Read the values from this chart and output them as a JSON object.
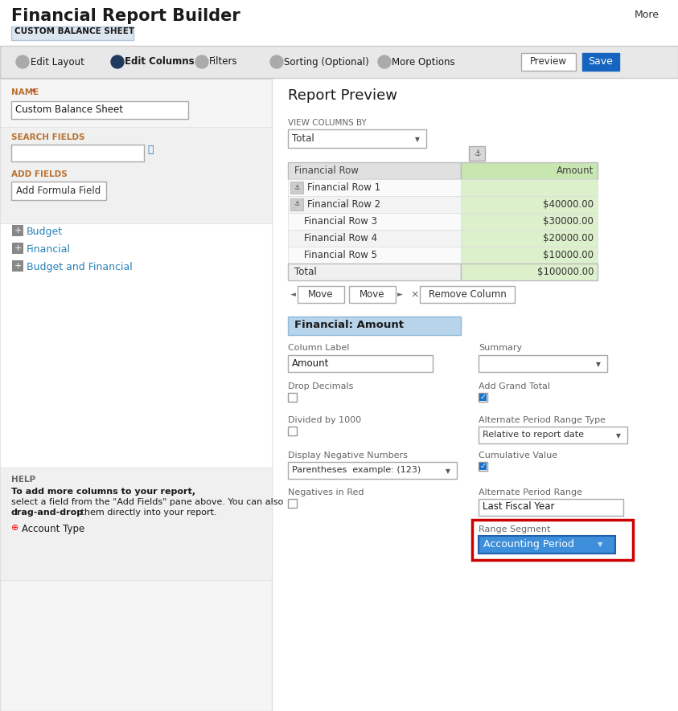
{
  "title": "Financial Report Builder",
  "subtitle": "CUSTOM BALANCE SHEET",
  "more_text": "More",
  "nav_items": [
    "Edit Layout",
    "Edit Columns",
    "Filters",
    "Sorting (Optional)",
    "More Options"
  ],
  "nav_active": 1,
  "preview_btn": "Preview",
  "save_btn": "Save",
  "name_label": "NAME",
  "name_value": "Custom Balance Sheet",
  "search_label": "SEARCH FIELDS",
  "add_fields_label": "ADD FIELDS",
  "add_formula_btn": "Add Formula Field",
  "field_groups": [
    "Budget",
    "Financial",
    "Budget and Financial"
  ],
  "help_label": "HELP",
  "help_text_bold": "To add more columns to your report,",
  "help_text_line2": "select a field from the \"Add Fields\" pane above. You can also",
  "help_text_line3_normal": "from the \"Add Fields\" pane above. You can also",
  "help_text_bold2": "drag-and-drop",
  "help_text_end": "them directly into your report.",
  "help_drag_item": "Account Type",
  "report_preview_title": "Report Preview",
  "view_columns_label": "VIEW COLUMNS BY",
  "view_columns_value": "Total",
  "table_header_left": "Financial Row",
  "table_header_right": "Amount",
  "table_rows": [
    [
      "Financial Row 1",
      ""
    ],
    [
      "Financial Row 2",
      "$40000.00"
    ],
    [
      "Financial Row 3",
      "$30000.00"
    ],
    [
      "Financial Row 4",
      "$20000.00"
    ],
    [
      "Financial Row 5",
      "$10000.00"
    ]
  ],
  "table_total_label": "Total",
  "table_total_value": "$100000.00",
  "move_btn": "Move",
  "remove_btn": "Remove Column",
  "financial_amount_title": "Financial: Amount",
  "col_label_label": "Column Label",
  "col_label_value": "Amount",
  "summary_label": "Summary",
  "drop_decimals_label": "Drop Decimals",
  "add_grand_total_label": "Add Grand Total",
  "divided_by_1000_label": "Divided by 1000",
  "alt_period_range_type_label": "Alternate Period Range Type",
  "alt_period_range_type_value": "Relative to report date",
  "display_neg_label": "Display Negative Numbers",
  "display_neg_value": "Parentheses  example: (123)",
  "cumulative_value_label": "Cumulative Value",
  "negatives_in_red_label": "Negatives in Red",
  "alt_period_range_label": "Alternate Period Range",
  "alt_period_range_value": "Last Fiscal Year",
  "range_segment_label": "Range Segment",
  "range_segment_value": "Accounting Period",
  "bg_color": "#ffffff",
  "nav_bg": "#e8e8e8",
  "nav_border": "#cccccc",
  "table_header_bg": "#e0e0e0",
  "table_amount_bg": "#ddf0cc",
  "table_amount_header_bg": "#c8e6b0",
  "left_panel_bg": "#f5f5f5",
  "left_panel_inner_bg": "#ffffff",
  "financial_amount_header_bg": "#b8d4ea",
  "red_border_color": "#cc0000",
  "blue_btn_color": "#1565c0",
  "active_nav_color": "#1e3a5f",
  "link_color": "#2980b9",
  "text_dark": "#1a1a1a",
  "text_gray": "#666666",
  "text_orange": "#b87333",
  "checkbox_checked_color": "#1a73c8",
  "dropdown_blue_bg": "#3d8fdb",
  "subtitle_bg": "#dce6f0",
  "subtitle_border": "#b0c4d8"
}
